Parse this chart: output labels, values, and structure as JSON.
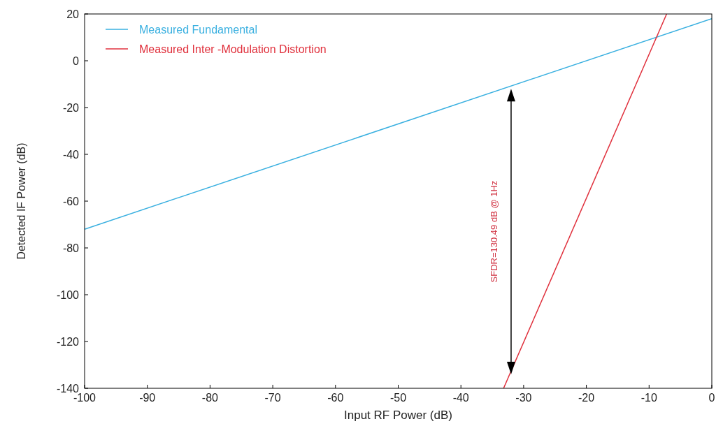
{
  "chart_data": {
    "type": "line",
    "xlabel": "Input RF Power (dB)",
    "ylabel": "Detected IF Power (dB)",
    "xlim": [
      -100,
      0
    ],
    "ylim": [
      -140,
      20
    ],
    "xticks": [
      -100,
      -90,
      -80,
      -70,
      -60,
      -50,
      -40,
      -30,
      -20,
      -10,
      0
    ],
    "yticks": [
      -140,
      -120,
      -100,
      -80,
      -60,
      -40,
      -20,
      0,
      20
    ],
    "series": [
      {
        "name": "Measured Fundamental",
        "color": "#3ab0e0",
        "x": [
          -100,
          0
        ],
        "values": [
          -72,
          18
        ]
      },
      {
        "name": "Measured Inter -Modulation Distortion",
        "color": "#e0303c",
        "x": [
          -33.2,
          -7.2
        ],
        "values": [
          -140,
          20
        ]
      }
    ],
    "annotations": [
      "SFDR=130.49 dB @ 1Hz"
    ],
    "legend": "top left",
    "grid": false,
    "marker": "none",
    "line_style": "solid"
  }
}
